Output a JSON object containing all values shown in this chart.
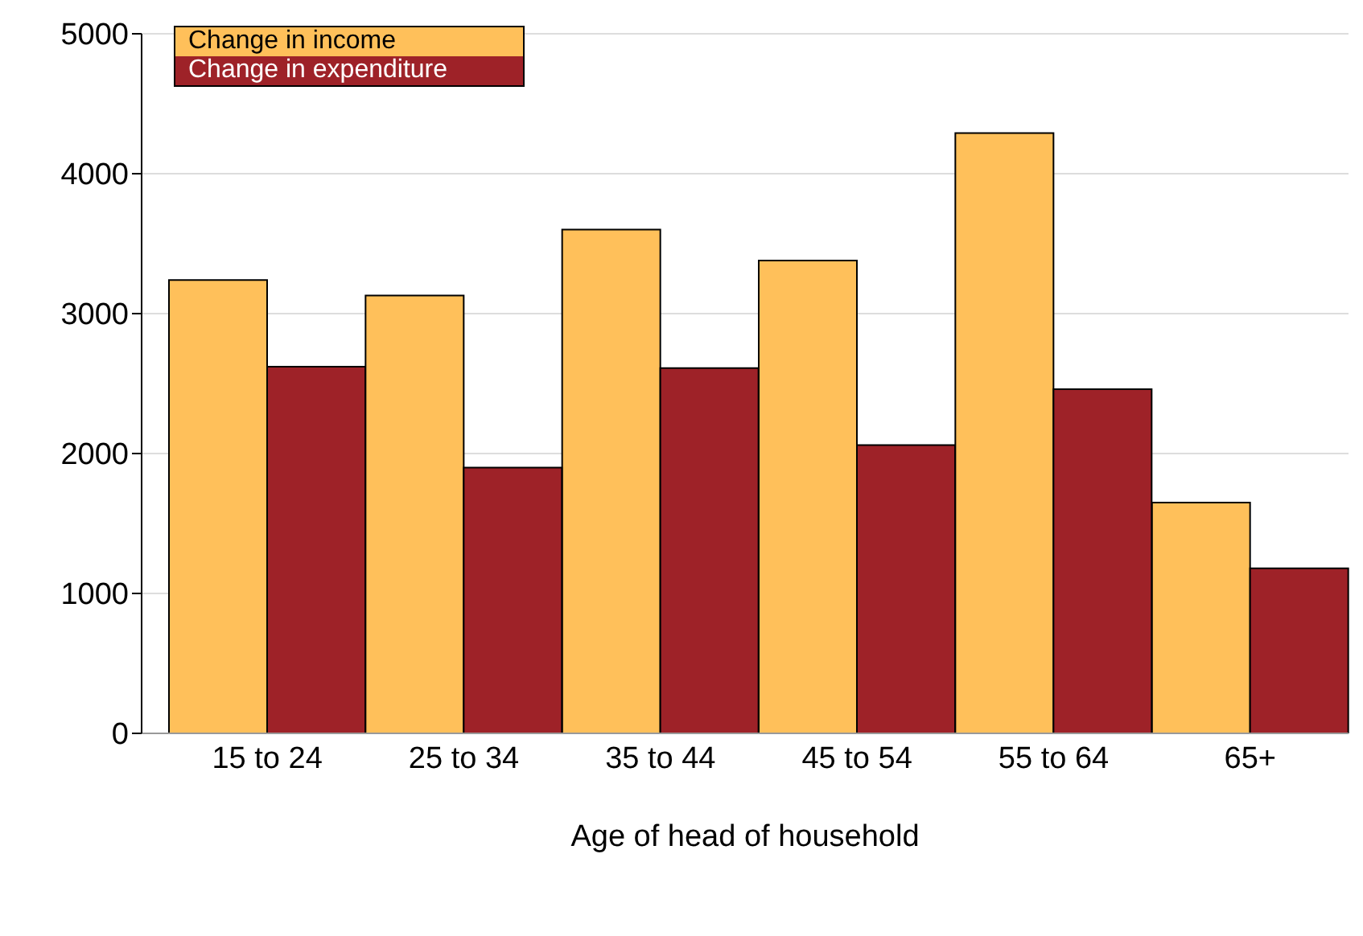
{
  "chart_data": {
    "type": "bar",
    "xlabel": "Age of head of household",
    "categories": [
      "15 to 24",
      "25 to 34",
      "35 to 44",
      "45 to 54",
      "55 to 64",
      "65+"
    ],
    "series": [
      {
        "name": "Change in income",
        "color": "#ffc05a",
        "values": [
          3240,
          3130,
          3600,
          3380,
          4290,
          1650
        ]
      },
      {
        "name": "Change in expenditure",
        "color": "#9e2228",
        "values": [
          2620,
          1900,
          2610,
          2060,
          2460,
          1180
        ]
      }
    ],
    "ylim": [
      0,
      5000
    ],
    "yticks": [
      0,
      1000,
      2000,
      3000,
      4000,
      5000
    ],
    "grid": "y",
    "legend": "top left"
  }
}
